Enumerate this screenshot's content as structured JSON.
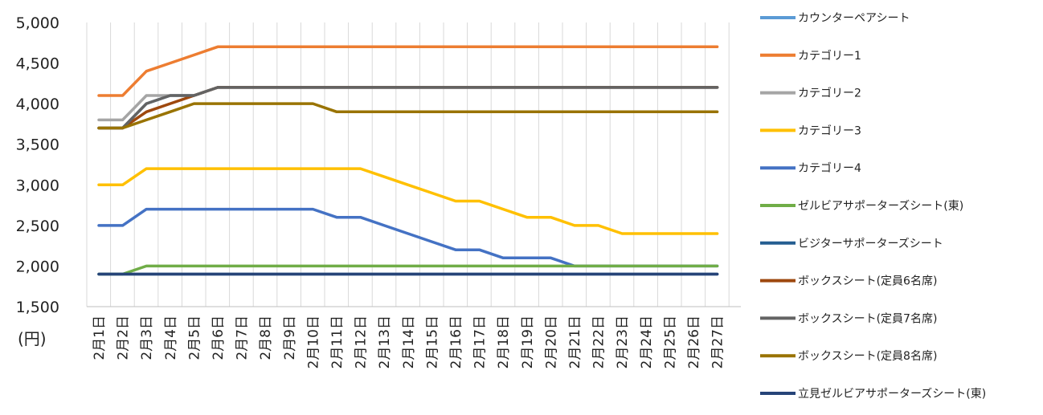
{
  "chart_data": {
    "type": "line",
    "title": "",
    "xlabel": "",
    "ylabel": "(円)",
    "ylim": [
      1500,
      5000
    ],
    "yticks": [
      "5,000",
      "4,500",
      "4,000",
      "3,500",
      "3,000",
      "2,500",
      "2,000",
      "1,500"
    ],
    "ytick_values": [
      5000,
      4500,
      4000,
      3500,
      3000,
      2500,
      2000,
      1500
    ],
    "grid": "vertical",
    "legend_position": "right",
    "categories": [
      "2月1日",
      "2月2日",
      "2月3日",
      "2月4日",
      "2月5日",
      "2月6日",
      "2月7日",
      "2月8日",
      "2月9日",
      "2月10日",
      "2月11日",
      "2月12日",
      "2月13日",
      "2月14日",
      "2月15日",
      "2月16日",
      "2月17日",
      "2月18日",
      "2月19日",
      "2月20日",
      "2月21日",
      "2月22日",
      "2月23日",
      "2月24日",
      "2月25日",
      "2月26日",
      "2月27日"
    ],
    "series": [
      {
        "name": "カウンターペアシート",
        "color": "#5B9BD5",
        "values": [
          3700,
          3700,
          4000,
          4100,
          4100,
          4200,
          4200,
          4200,
          4200,
          4200,
          4200,
          4200,
          4200,
          4200,
          4200,
          4200,
          4200,
          4200,
          4200,
          4200,
          4200,
          4200,
          4200,
          4200,
          4200,
          4200,
          4200
        ]
      },
      {
        "name": "カテゴリー1",
        "color": "#ED7D31",
        "values": [
          4100,
          4100,
          4400,
          4500,
          4600,
          4700,
          4700,
          4700,
          4700,
          4700,
          4700,
          4700,
          4700,
          4700,
          4700,
          4700,
          4700,
          4700,
          4700,
          4700,
          4700,
          4700,
          4700,
          4700,
          4700,
          4700,
          4700
        ]
      },
      {
        "name": "カテゴリー2",
        "color": "#A5A5A5",
        "values": [
          3800,
          3800,
          4100,
          4100,
          4100,
          4200,
          4200,
          4200,
          4200,
          4200,
          4200,
          4200,
          4200,
          4200,
          4200,
          4200,
          4200,
          4200,
          4200,
          4200,
          4200,
          4200,
          4200,
          4200,
          4200,
          4200,
          4200
        ]
      },
      {
        "name": "カテゴリー3",
        "color": "#FFC000",
        "values": [
          3000,
          3000,
          3200,
          3200,
          3200,
          3200,
          3200,
          3200,
          3200,
          3200,
          3200,
          3200,
          3100,
          3000,
          2900,
          2800,
          2800,
          2700,
          2600,
          2600,
          2500,
          2500,
          2400,
          2400,
          2400,
          2400,
          2400
        ]
      },
      {
        "name": "カテゴリー4",
        "color": "#4472C4",
        "values": [
          2500,
          2500,
          2700,
          2700,
          2700,
          2700,
          2700,
          2700,
          2700,
          2700,
          2600,
          2600,
          2500,
          2400,
          2300,
          2200,
          2200,
          2100,
          2100,
          2100,
          2000,
          2000,
          2000,
          2000,
          2000,
          2000,
          2000
        ]
      },
      {
        "name": "ゼルビアサポーターズシート(東)",
        "color": "#70AD47",
        "values": [
          1900,
          1900,
          2000,
          2000,
          2000,
          2000,
          2000,
          2000,
          2000,
          2000,
          2000,
          2000,
          2000,
          2000,
          2000,
          2000,
          2000,
          2000,
          2000,
          2000,
          2000,
          2000,
          2000,
          2000,
          2000,
          2000,
          2000
        ]
      },
      {
        "name": "ビジターサポーターズシート",
        "color": "#255E91",
        "values": [
          1900,
          1900,
          1900,
          1900,
          1900,
          1900,
          1900,
          1900,
          1900,
          1900,
          1900,
          1900,
          1900,
          1900,
          1900,
          1900,
          1900,
          1900,
          1900,
          1900,
          1900,
          1900,
          1900,
          1900,
          1900,
          1900,
          1900
        ]
      },
      {
        "name": "ボックスシート(定員6名席)",
        "color": "#9E480E",
        "values": [
          3700,
          3700,
          3900,
          4000,
          4100,
          4200,
          4200,
          4200,
          4200,
          4200,
          4200,
          4200,
          4200,
          4200,
          4200,
          4200,
          4200,
          4200,
          4200,
          4200,
          4200,
          4200,
          4200,
          4200,
          4200,
          4200,
          4200
        ]
      },
      {
        "name": "ボックスシート(定員7名席)",
        "color": "#636363",
        "values": [
          3700,
          3700,
          4000,
          4100,
          4100,
          4200,
          4200,
          4200,
          4200,
          4200,
          4200,
          4200,
          4200,
          4200,
          4200,
          4200,
          4200,
          4200,
          4200,
          4200,
          4200,
          4200,
          4200,
          4200,
          4200,
          4200,
          4200
        ]
      },
      {
        "name": "ボックスシート(定員8名席)",
        "color": "#997300",
        "values": [
          3700,
          3700,
          3800,
          3900,
          4000,
          4000,
          4000,
          4000,
          4000,
          4000,
          3900,
          3900,
          3900,
          3900,
          3900,
          3900,
          3900,
          3900,
          3900,
          3900,
          3900,
          3900,
          3900,
          3900,
          3900,
          3900,
          3900
        ]
      },
      {
        "name": "立見ゼルビアサポーターズシート(東)",
        "color": "#264478",
        "values": [
          1900,
          1900,
          1900,
          1900,
          1900,
          1900,
          1900,
          1900,
          1900,
          1900,
          1900,
          1900,
          1900,
          1900,
          1900,
          1900,
          1900,
          1900,
          1900,
          1900,
          1900,
          1900,
          1900,
          1900,
          1900,
          1900,
          1900
        ]
      }
    ]
  }
}
